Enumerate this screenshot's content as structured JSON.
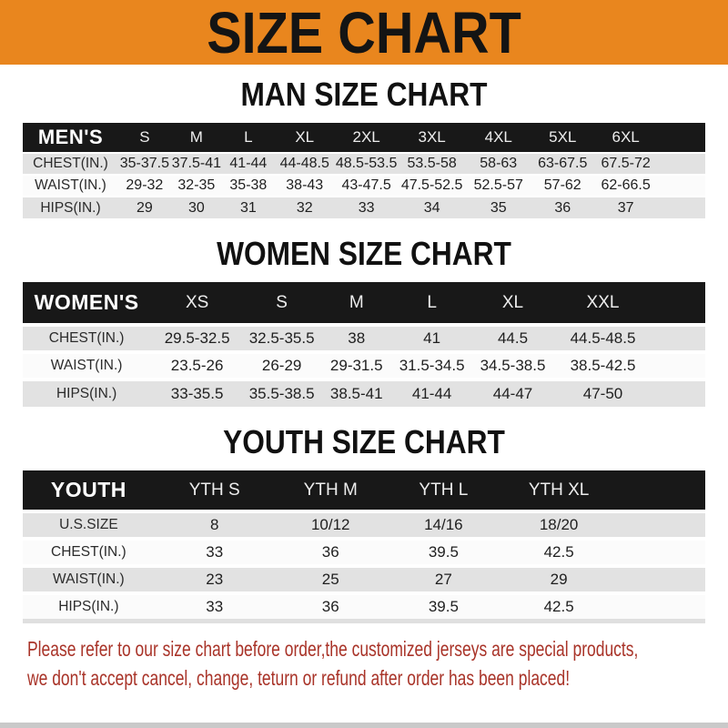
{
  "banner": {
    "title": "SIZE CHART"
  },
  "colors": {
    "banner_orange": "#E9861E",
    "header_band": "#181818",
    "shaded_row": "#E2E2E2",
    "notice_red": "#A93429"
  },
  "sections": [
    {
      "heading": "MAN SIZE CHART",
      "table": {
        "kind": "men",
        "header_label": "MEN'S",
        "columns": [
          "S",
          "M",
          "L",
          "XL",
          "2XL",
          "3XL",
          "4XL",
          "5XL",
          "6XL"
        ],
        "col_widths_pct": [
          14.0,
          7.7,
          7.5,
          7.7,
          8.8,
          9.3,
          9.9,
          9.6,
          9.2,
          9.3
        ],
        "filler_width_pct": 7.0,
        "rows": [
          {
            "label": "CHEST(IN.)",
            "values": [
              "35-37.5",
              "37.5-41",
              "41-44",
              "44-48.5",
              "48.5-53.5",
              "53.5-58",
              "58-63",
              "63-67.5",
              "67.5-72"
            ]
          },
          {
            "label": "WAIST(IN.)",
            "values": [
              "29-32",
              "32-35",
              "35-38",
              "38-43",
              "43-47.5",
              "47.5-52.5",
              "52.5-57",
              "57-62",
              "62-66.5"
            ]
          },
          {
            "label": "HIPS(IN.)",
            "values": [
              "29",
              "30",
              "31",
              "32",
              "33",
              "34",
              "35",
              "36",
              "37"
            ]
          }
        ]
      }
    },
    {
      "heading": "WOMEN SIZE CHART",
      "table": {
        "kind": "women",
        "header_label": "WOMEN'S",
        "columns": [
          "XS",
          "S",
          "M",
          "L",
          "XL",
          "XXL"
        ],
        "col_widths_pct": [
          18.7,
          13.7,
          11.1,
          10.8,
          11.3,
          12.4,
          14.0
        ],
        "filler_width_pct": 8.0,
        "rows": [
          {
            "label": "CHEST(IN.)",
            "values": [
              "29.5-32.5",
              "32.5-35.5",
              "38",
              "41",
              "44.5",
              "44.5-48.5"
            ]
          },
          {
            "label": "WAIST(IN.)",
            "values": [
              "23.5-26",
              "26-29",
              "29-31.5",
              "31.5-34.5",
              "34.5-38.5",
              "38.5-42.5"
            ]
          },
          {
            "label": "HIPS(IN.)",
            "values": [
              "33-35.5",
              "35.5-38.5",
              "38.5-41",
              "41-44",
              "44-47",
              "47-50"
            ]
          }
        ]
      }
    },
    {
      "heading": "YOUTH SIZE CHART",
      "table": {
        "kind": "youth",
        "header_label": "YOUTH",
        "columns": [
          "YTH S",
          "YTH M",
          "YTH L",
          "YTH XL"
        ],
        "col_widths_pct": [
          19.3,
          17.6,
          16.4,
          16.7,
          17.1
        ],
        "filler_width_pct": 12.9,
        "rows": [
          {
            "label": "U.S.SIZE",
            "values": [
              "8",
              "10/12",
              "14/16",
              "18/20"
            ]
          },
          {
            "label": "CHEST(IN.)",
            "values": [
              "33",
              "36",
              "39.5",
              "42.5"
            ]
          },
          {
            "label": "WAIST(IN.)",
            "values": [
              "23",
              "25",
              "27",
              "29"
            ]
          },
          {
            "label": "HIPS(IN.)",
            "values": [
              "33",
              "36",
              "39.5",
              "42.5"
            ]
          }
        ]
      }
    }
  ],
  "notice": {
    "lines": [
      "Please refer to our size chart before order,the customized jerseys are special products,",
      "we don't accept cancel, change, teturn or refund after order has been placed!"
    ]
  }
}
